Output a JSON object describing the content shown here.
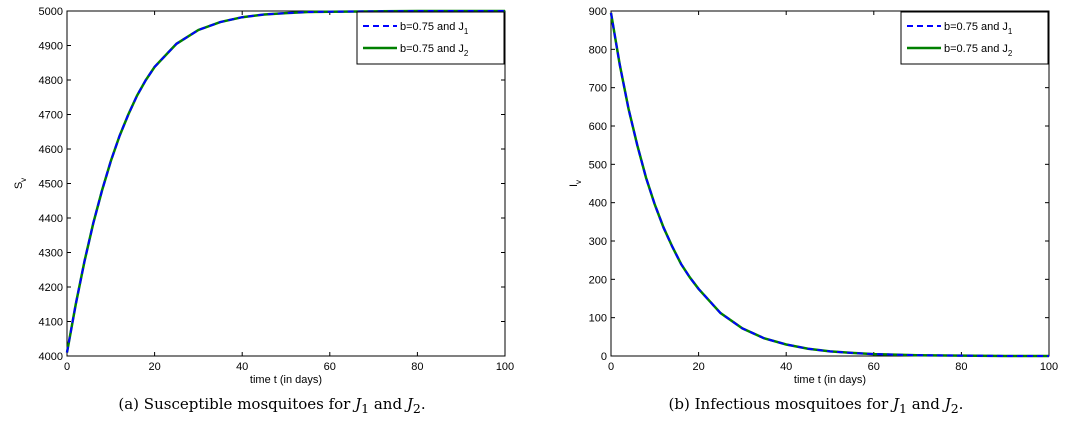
{
  "colors": {
    "series1": "#0000ff",
    "series2": "#008000",
    "axes": "#000000"
  },
  "chart_data": [
    {
      "type": "line",
      "xlabel": "time t (in days)",
      "ylabel_main": "S",
      "ylabel_sub": "v",
      "xlim": [
        0,
        100
      ],
      "ylim": [
        4000,
        5000
      ],
      "xticks": [
        0,
        20,
        40,
        60,
        80,
        100
      ],
      "yticks": [
        4000,
        4100,
        4200,
        4300,
        4400,
        4500,
        4600,
        4700,
        4800,
        4900,
        5000
      ],
      "legend_position": "top-right",
      "series": [
        {
          "name_main": "b=0.75 and J",
          "name_sub": "1",
          "style": "dashed",
          "x": [
            0,
            2,
            4,
            6,
            8,
            10,
            12,
            14,
            16,
            18,
            20,
            25,
            30,
            35,
            40,
            45,
            50,
            55,
            60,
            70,
            80,
            90,
            100
          ],
          "y": [
            4010,
            4150,
            4275,
            4385,
            4480,
            4565,
            4638,
            4700,
            4755,
            4800,
            4838,
            4905,
            4945,
            4968,
            4982,
            4990,
            4994,
            4997,
            4998,
            4999,
            5000,
            5000,
            5000
          ]
        },
        {
          "name_main": "b=0.75 and J",
          "name_sub": "2",
          "style": "solid",
          "x": [
            0,
            2,
            4,
            6,
            8,
            10,
            12,
            14,
            16,
            18,
            20,
            25,
            30,
            35,
            40,
            45,
            50,
            55,
            60,
            70,
            80,
            90,
            100
          ],
          "y": [
            4010,
            4150,
            4275,
            4385,
            4480,
            4565,
            4638,
            4700,
            4755,
            4800,
            4838,
            4905,
            4945,
            4968,
            4982,
            4990,
            4994,
            4997,
            4998,
            4999,
            5000,
            5000,
            5000
          ]
        }
      ]
    },
    {
      "type": "line",
      "xlabel": "time t (in days)",
      "ylabel_main": "I",
      "ylabel_sub": "v",
      "xlim": [
        0,
        100
      ],
      "ylim": [
        0,
        900
      ],
      "xticks": [
        0,
        20,
        40,
        60,
        80,
        100
      ],
      "yticks": [
        0,
        100,
        200,
        300,
        400,
        500,
        600,
        700,
        800,
        900
      ],
      "legend_position": "top-right",
      "series": [
        {
          "name_main": "b=0.75 and J",
          "name_sub": "1",
          "style": "dashed",
          "x": [
            0,
            2,
            4,
            6,
            8,
            10,
            12,
            14,
            16,
            18,
            20,
            25,
            30,
            35,
            40,
            45,
            50,
            55,
            60,
            70,
            80,
            90,
            100
          ],
          "y": [
            895,
            760,
            645,
            550,
            465,
            395,
            335,
            285,
            240,
            205,
            175,
            112,
            72,
            46,
            30,
            19,
            12,
            8,
            5,
            2,
            1,
            0,
            0
          ]
        },
        {
          "name_main": "b=0.75 and J",
          "name_sub": "2",
          "style": "solid",
          "x": [
            0,
            2,
            4,
            6,
            8,
            10,
            12,
            14,
            16,
            18,
            20,
            25,
            30,
            35,
            40,
            45,
            50,
            55,
            60,
            70,
            80,
            90,
            100
          ],
          "y": [
            895,
            760,
            645,
            550,
            465,
            395,
            335,
            285,
            240,
            205,
            175,
            112,
            72,
            46,
            30,
            19,
            12,
            8,
            5,
            2,
            1,
            0,
            0
          ]
        }
      ]
    }
  ],
  "captions": [
    {
      "prefix": "(a) Susceptible mosquitoes for ",
      "j1": "J",
      "j1sub": "1",
      "mid": " and ",
      "j2": "J",
      "j2sub": "2",
      "end": "."
    },
    {
      "prefix": "(b) Infectious mosquitoes for ",
      "j1": "J",
      "j1sub": "1",
      "mid": " and ",
      "j2": "J",
      "j2sub": "2",
      "end": "."
    }
  ]
}
